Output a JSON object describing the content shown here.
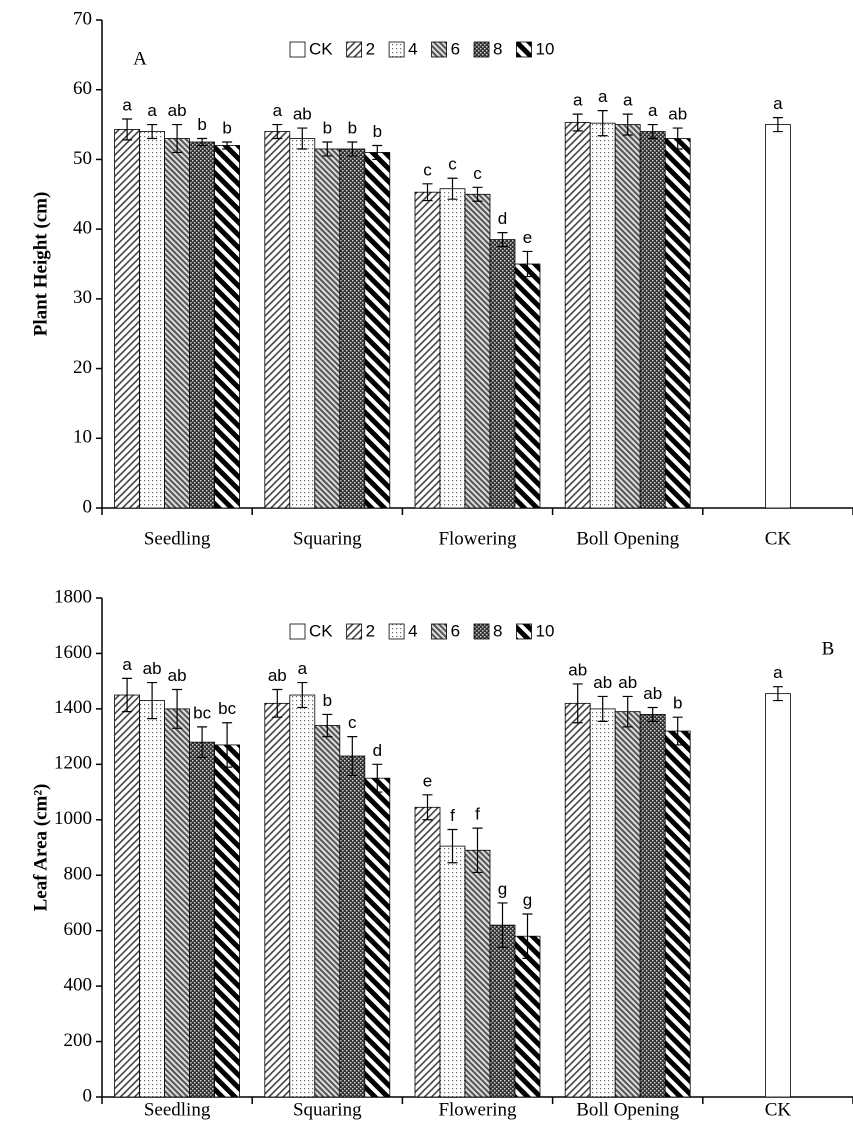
{
  "chart_data": [
    {
      "type": "bar",
      "annotation": "A",
      "ylabel": "Plant Height (cm)",
      "categories": [
        "Seedling",
        "Squaring",
        "Flowering",
        "Boll Opening",
        "CK"
      ],
      "series": [
        {
          "name": "CK",
          "values": [
            null,
            null,
            null,
            null,
            55
          ],
          "errors": [
            null,
            null,
            null,
            null,
            1
          ],
          "labels": [
            null,
            null,
            null,
            null,
            "a"
          ]
        },
        {
          "name": "2",
          "values": [
            54.3,
            54,
            45.3,
            55.3,
            null
          ],
          "errors": [
            1.5,
            1,
            1.2,
            1.2,
            null
          ],
          "labels": [
            "a",
            "a",
            "c",
            "a",
            null
          ]
        },
        {
          "name": "4",
          "values": [
            54,
            53,
            45.8,
            55.2,
            null
          ],
          "errors": [
            1,
            1.5,
            1.5,
            1.8,
            null
          ],
          "labels": [
            "a",
            "ab",
            "c",
            "a",
            null
          ]
        },
        {
          "name": "6",
          "values": [
            53,
            51.5,
            45,
            55,
            null
          ],
          "errors": [
            2,
            1,
            1,
            1.5,
            null
          ],
          "labels": [
            "ab",
            "b",
            "c",
            "a",
            null
          ]
        },
        {
          "name": "8",
          "values": [
            52.5,
            51.5,
            38.5,
            54,
            null
          ],
          "errors": [
            0.5,
            1,
            1,
            1,
            null
          ],
          "labels": [
            "b",
            "b",
            "d",
            "a",
            null
          ]
        },
        {
          "name": "10",
          "values": [
            52,
            51,
            35,
            53,
            null
          ],
          "errors": [
            0.5,
            1,
            1.8,
            1.5,
            null
          ],
          "labels": [
            "b",
            "b",
            "e",
            "ab",
            null
          ]
        }
      ],
      "ylim": [
        0,
        70
      ],
      "yticks": [
        0,
        10,
        20,
        30,
        40,
        50,
        60,
        70
      ],
      "legend": "top"
    },
    {
      "type": "bar",
      "annotation": "B",
      "ylabel": "Leaf Area (cm²)",
      "categories": [
        "Seedling",
        "Squaring",
        "Flowering",
        "Boll Opening",
        "CK"
      ],
      "series": [
        {
          "name": "CK",
          "values": [
            null,
            null,
            null,
            null,
            1455
          ],
          "errors": [
            null,
            null,
            null,
            null,
            25
          ],
          "labels": [
            null,
            null,
            null,
            null,
            "a"
          ]
        },
        {
          "name": "2",
          "values": [
            1450,
            1420,
            1045,
            1420,
            null
          ],
          "errors": [
            60,
            50,
            45,
            70,
            null
          ],
          "labels": [
            "a",
            "ab",
            "e",
            "ab",
            null
          ]
        },
        {
          "name": "4",
          "values": [
            1430,
            1450,
            905,
            1400,
            null
          ],
          "errors": [
            65,
            45,
            60,
            45,
            null
          ],
          "labels": [
            "ab",
            "a",
            "f",
            "ab",
            null
          ]
        },
        {
          "name": "6",
          "values": [
            1400,
            1340,
            890,
            1390,
            null
          ],
          "errors": [
            70,
            40,
            80,
            55,
            null
          ],
          "labels": [
            "ab",
            "b",
            "f",
            "ab",
            null
          ]
        },
        {
          "name": "8",
          "values": [
            1280,
            1230,
            620,
            1380,
            null
          ],
          "errors": [
            55,
            70,
            80,
            25,
            null
          ],
          "labels": [
            "bc",
            "c",
            "g",
            "ab",
            null
          ]
        },
        {
          "name": "10",
          "values": [
            1270,
            1150,
            580,
            1320,
            null
          ],
          "errors": [
            80,
            50,
            80,
            50,
            null
          ],
          "labels": [
            "bc",
            "d",
            "g",
            "b",
            null
          ]
        }
      ],
      "ylim": [
        0,
        1800
      ],
      "yticks": [
        0,
        200,
        400,
        600,
        800,
        1000,
        1200,
        1400,
        1600,
        1800
      ],
      "legend": "top"
    }
  ]
}
